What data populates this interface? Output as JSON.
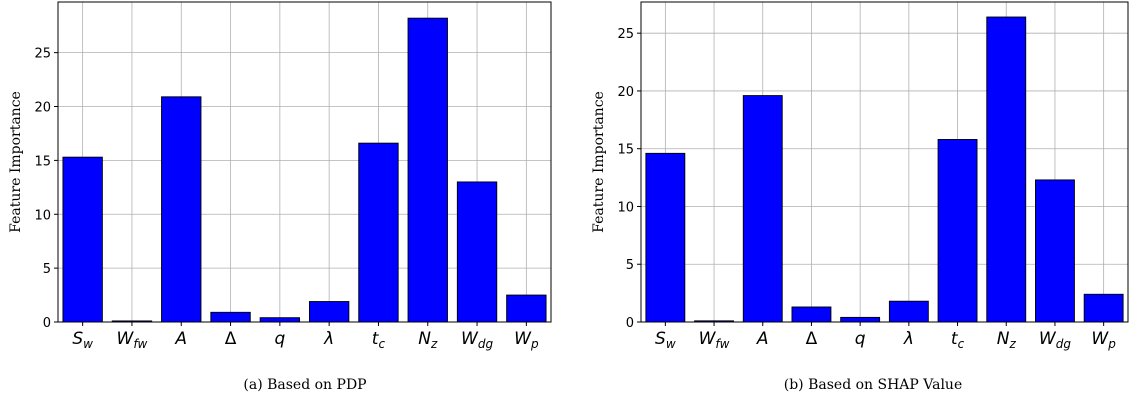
{
  "figure": {
    "captions": [
      "(a)  Based on PDP",
      "(b)  Based on SHAP Value"
    ]
  },
  "chart_data": [
    {
      "type": "bar",
      "ylabel": "Feature Importance",
      "caption": "(a)  Based on PDP",
      "ylim": [
        0,
        29.7
      ],
      "yticks": [
        0,
        5,
        10,
        15,
        20,
        25
      ],
      "grid": true,
      "bar_color": "#0000ff",
      "categories": [
        {
          "base": "S",
          "sub": "w"
        },
        {
          "base": "W",
          "sub": "fw"
        },
        {
          "base": "A",
          "sub": ""
        },
        {
          "base": "Δ",
          "sub": ""
        },
        {
          "base": "q",
          "sub": ""
        },
        {
          "base": "λ",
          "sub": ""
        },
        {
          "base": "t",
          "sub": "c"
        },
        {
          "base": "N",
          "sub": "z"
        },
        {
          "base": "W",
          "sub": "dg"
        },
        {
          "base": "W",
          "sub": "p"
        }
      ],
      "values": [
        15.3,
        0.1,
        20.9,
        0.9,
        0.4,
        1.9,
        16.6,
        28.2,
        13.0,
        2.5
      ]
    },
    {
      "type": "bar",
      "ylabel": "Feature Importance",
      "caption": "(b)  Based on SHAP Value",
      "ylim": [
        0,
        27.7
      ],
      "yticks": [
        0,
        5,
        10,
        15,
        20,
        25
      ],
      "grid": true,
      "bar_color": "#0000ff",
      "categories": [
        {
          "base": "S",
          "sub": "w"
        },
        {
          "base": "W",
          "sub": "fw"
        },
        {
          "base": "A",
          "sub": ""
        },
        {
          "base": "Δ",
          "sub": ""
        },
        {
          "base": "q",
          "sub": ""
        },
        {
          "base": "λ",
          "sub": ""
        },
        {
          "base": "t",
          "sub": "c"
        },
        {
          "base": "N",
          "sub": "z"
        },
        {
          "base": "W",
          "sub": "dg"
        },
        {
          "base": "W",
          "sub": "p"
        }
      ],
      "values": [
        14.6,
        0.1,
        19.6,
        1.3,
        0.4,
        1.8,
        15.8,
        26.4,
        12.3,
        2.4
      ]
    }
  ]
}
